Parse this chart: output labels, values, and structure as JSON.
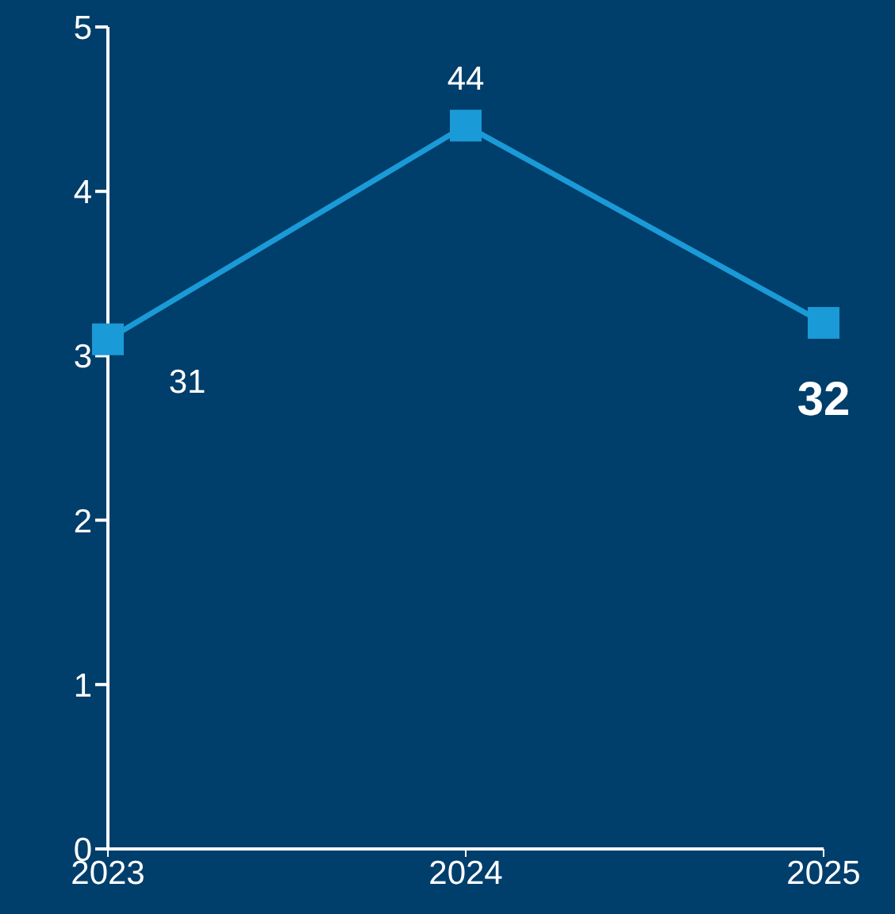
{
  "chart_data": {
    "type": "line",
    "categories": [
      "2023",
      "2024",
      "2025"
    ],
    "series": [
      {
        "color": "#1a9ad6",
        "values": [
          3.1,
          4.4,
          3.2
        ]
      }
    ],
    "annotations": [
      {
        "text": "31",
        "x": "2023",
        "y": 3.1
      },
      {
        "text": "44",
        "x": "2024",
        "y": 4.4
      },
      {
        "text": "32",
        "x": "2025",
        "y": 3.2
      }
    ],
    "ylim": [
      0,
      5
    ],
    "yticks": [
      0,
      1,
      2,
      3,
      4,
      5
    ],
    "grid": false,
    "legend": false,
    "marker": "square",
    "line_style": "solid"
  }
}
